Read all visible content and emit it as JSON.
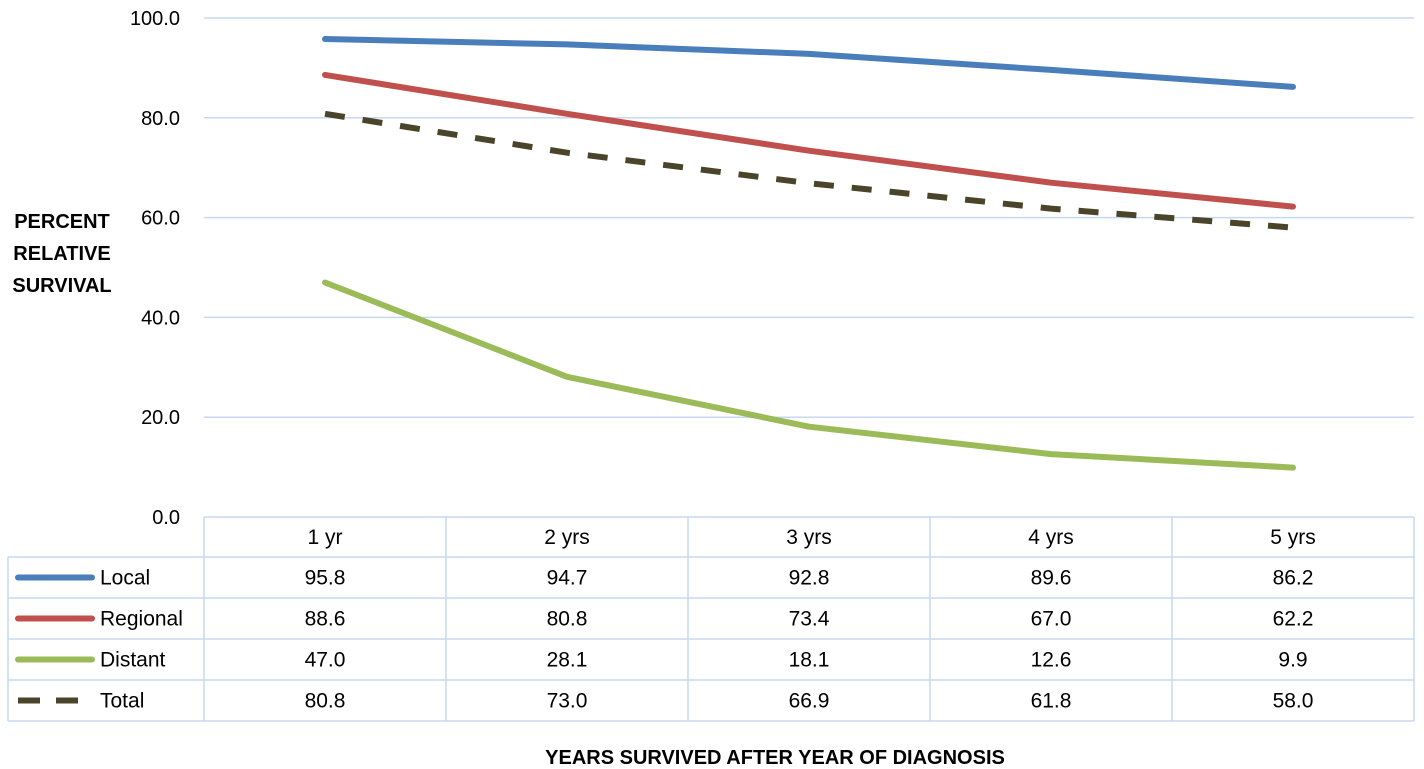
{
  "chart_data": {
    "type": "line",
    "title": "",
    "ylabel_lines": [
      "PERCENT",
      "RELATIVE",
      "SURVIVAL"
    ],
    "xlabel": "YEARS SURVIVED AFTER YEAR OF DIAGNOSIS",
    "categories": [
      "1 yr",
      "2 yrs",
      "3 yrs",
      "4 yrs",
      "5 yrs"
    ],
    "ylim": [
      0,
      100
    ],
    "yticks": [
      "0.0",
      "20.0",
      "40.0",
      "60.0",
      "80.0",
      "100.0"
    ],
    "grid": true,
    "legend": "data table below chart",
    "series": [
      {
        "name": "Local",
        "values": [
          95.8,
          94.7,
          92.8,
          89.6,
          86.2
        ],
        "labels": [
          "95.8",
          "94.7",
          "92.8",
          "89.6",
          "86.2"
        ],
        "color": "#4a7ebb",
        "dashed": false
      },
      {
        "name": "Regional",
        "values": [
          88.6,
          80.8,
          73.4,
          67.0,
          62.2
        ],
        "labels": [
          "88.6",
          "80.8",
          "73.4",
          "67.0",
          "62.2"
        ],
        "color": "#c0504d",
        "dashed": false
      },
      {
        "name": "Distant",
        "values": [
          47.0,
          28.1,
          18.1,
          12.6,
          9.9
        ],
        "labels": [
          "47.0",
          "28.1",
          "18.1",
          "12.6",
          "9.9"
        ],
        "color": "#9bbb59",
        "dashed": false
      },
      {
        "name": "Total",
        "values": [
          80.8,
          73.0,
          66.9,
          61.8,
          58.0
        ],
        "labels": [
          "80.8",
          "73.0",
          "66.9",
          "61.8",
          "58.0"
        ],
        "color": "#4a452a",
        "dashed": true
      }
    ]
  }
}
